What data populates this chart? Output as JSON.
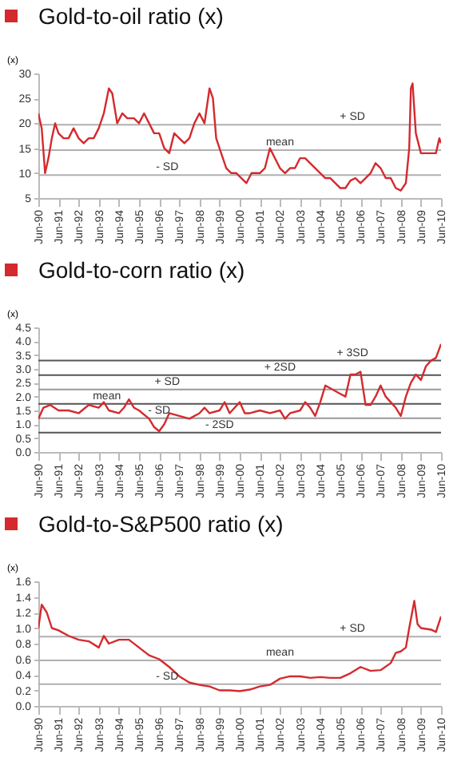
{
  "chart_data": [
    {
      "type": "line",
      "title": "Gold-to-oil ratio (x)",
      "ylabel": "(x)",
      "x": [
        "1990-06",
        "1990-08",
        "1990-10",
        "1990-12",
        "1991-02",
        "1991-04",
        "1991-06",
        "1991-09",
        "1991-12",
        "1992-03",
        "1992-06",
        "1992-09",
        "1992-12",
        "1993-03",
        "1993-06",
        "1993-09",
        "1993-12",
        "1994-02",
        "1994-05",
        "1994-08",
        "1994-11",
        "1995-03",
        "1995-06",
        "1995-09",
        "1995-12",
        "1996-03",
        "1996-06",
        "1996-09",
        "1996-12",
        "1997-03",
        "1997-06",
        "1997-09",
        "1997-12",
        "1998-03",
        "1998-06",
        "1998-09",
        "1998-12",
        "1999-02",
        "1999-04",
        "1999-07",
        "1999-10",
        "2000-01",
        "2000-04",
        "2000-07",
        "2000-10",
        "2001-01",
        "2001-06",
        "2001-09",
        "2001-12",
        "2002-03",
        "2002-06",
        "2002-09",
        "2002-12",
        "2003-03",
        "2003-06",
        "2003-09",
        "2003-12",
        "2004-03",
        "2004-06",
        "2004-09",
        "2004-12",
        "2005-03",
        "2005-06",
        "2005-09",
        "2005-12",
        "2006-03",
        "2006-06",
        "2006-09",
        "2006-12",
        "2007-03",
        "2007-06",
        "2007-09",
        "2007-12",
        "2008-03",
        "2008-06",
        "2008-09",
        "2008-11",
        "2008-12",
        "2009-01",
        "2009-03",
        "2009-06",
        "2009-09",
        "2009-12",
        "2010-03",
        "2010-05",
        "2010-06"
      ],
      "series": [
        {
          "color": "#d42a2e",
          "values": [
            22,
            19,
            10,
            13,
            17,
            20,
            18,
            17,
            17,
            19,
            17,
            16,
            17,
            17,
            19,
            22,
            27,
            26,
            20,
            22,
            21,
            21,
            20,
            22,
            20,
            18,
            18,
            15,
            14,
            18,
            17,
            16,
            17,
            20,
            22,
            20,
            27,
            25,
            17,
            14,
            11,
            10,
            10,
            9,
            8,
            10,
            10,
            11,
            15,
            13,
            11,
            10,
            11,
            11,
            13,
            13,
            12,
            11,
            10,
            9,
            9,
            8,
            7,
            7,
            8.5,
            9,
            8,
            9,
            10,
            12,
            11,
            9,
            9,
            7,
            6.5,
            8,
            15,
            27,
            28,
            18,
            14,
            14,
            14,
            14,
            17,
            16
          ]
        }
      ],
      "xlim": [
        "1990-06",
        "2010-06"
      ],
      "xticks": [
        {
          "value": "1990-06",
          "label": "Jun-90"
        },
        {
          "value": "1991-06",
          "label": "Jun-91"
        },
        {
          "value": "1992-06",
          "label": "Jun-92"
        },
        {
          "value": "1993-06",
          "label": "Jun-93"
        },
        {
          "value": "1994-06",
          "label": "Jun-94"
        },
        {
          "value": "1995-06",
          "label": "Jun-95"
        },
        {
          "value": "1996-06",
          "label": "Jun-96"
        },
        {
          "value": "1997-06",
          "label": "Jun-97"
        },
        {
          "value": "1998-06",
          "label": "Jun-98"
        },
        {
          "value": "1999-06",
          "label": "Jun-99"
        },
        {
          "value": "2000-06",
          "label": "Jun-00"
        },
        {
          "value": "2001-06",
          "label": "Jun-01"
        },
        {
          "value": "2002-06",
          "label": "Jun-02"
        },
        {
          "value": "2003-06",
          "label": "Jun-03"
        },
        {
          "value": "2004-06",
          "label": "Jun-04"
        },
        {
          "value": "2005-06",
          "label": "Jun-05"
        },
        {
          "value": "2006-06",
          "label": "Jun-06"
        },
        {
          "value": "2007-06",
          "label": "Jun-07"
        },
        {
          "value": "2008-06",
          "label": "Jun-08"
        },
        {
          "value": "2009-06",
          "label": "Jun-09"
        },
        {
          "value": "2010-06",
          "label": "Jun-10"
        }
      ],
      "ylim": [
        5,
        30
      ],
      "yticks": [
        5,
        10,
        15,
        20,
        25,
        30
      ],
      "ref_lines": [
        {
          "axis": "y",
          "value": 19.7,
          "label": "+ SD",
          "color": "#b0b0b0"
        },
        {
          "axis": "y",
          "value": 14.6,
          "label": "mean",
          "color": "#b0b0b0"
        },
        {
          "axis": "y",
          "value": 9.6,
          "label": "- SD",
          "color": "#b0b0b0"
        }
      ]
    },
    {
      "type": "line",
      "title": "Gold-to-corn ratio (x)",
      "ylabel": "(x)",
      "x": [
        "1990-06",
        "1990-09",
        "1991-01",
        "1991-06",
        "1991-12",
        "1992-06",
        "1992-12",
        "1993-06",
        "1993-09",
        "1993-12",
        "1994-06",
        "1994-09",
        "1994-12",
        "1995-03",
        "1995-06",
        "1995-12",
        "1996-03",
        "1996-06",
        "1996-09",
        "1996-12",
        "1997-06",
        "1997-12",
        "1998-06",
        "1998-09",
        "1998-12",
        "1999-06",
        "1999-09",
        "1999-12",
        "2000-03",
        "2000-06",
        "2000-09",
        "2000-12",
        "2001-06",
        "2001-12",
        "2002-06",
        "2002-09",
        "2002-12",
        "2003-06",
        "2003-09",
        "2003-12",
        "2004-03",
        "2004-06",
        "2004-09",
        "2004-12",
        "2005-06",
        "2005-09",
        "2005-12",
        "2006-03",
        "2006-06",
        "2006-09",
        "2006-12",
        "2007-03",
        "2007-06",
        "2007-09",
        "2007-12",
        "2008-03",
        "2008-06",
        "2008-09",
        "2008-12",
        "2009-03",
        "2009-06",
        "2009-09",
        "2009-12",
        "2010-03",
        "2010-06"
      ],
      "series": [
        {
          "color": "#d42a2e",
          "values": [
            1.2,
            1.6,
            1.7,
            1.5,
            1.5,
            1.4,
            1.7,
            1.6,
            1.8,
            1.5,
            1.4,
            1.6,
            1.9,
            1.6,
            1.5,
            1.2,
            0.9,
            0.75,
            1.0,
            1.4,
            1.3,
            1.2,
            1.4,
            1.6,
            1.4,
            1.5,
            1.8,
            1.4,
            1.6,
            1.8,
            1.4,
            1.4,
            1.5,
            1.4,
            1.5,
            1.2,
            1.4,
            1.5,
            1.8,
            1.6,
            1.3,
            1.8,
            2.4,
            2.3,
            2.1,
            2.0,
            2.8,
            2.8,
            2.9,
            1.7,
            1.7,
            2.0,
            2.4,
            2.0,
            1.8,
            1.6,
            1.3,
            2.0,
            2.5,
            2.8,
            2.6,
            3.1,
            3.3,
            3.4,
            3.9
          ]
        }
      ],
      "xlim": [
        "1990-06",
        "2010-06"
      ],
      "xticks": [
        {
          "value": "1990-06",
          "label": "Jun-90"
        },
        {
          "value": "1991-06",
          "label": "Jun-91"
        },
        {
          "value": "1992-06",
          "label": "Jun-92"
        },
        {
          "value": "1993-06",
          "label": "Jun-93"
        },
        {
          "value": "1994-06",
          "label": "Jun-94"
        },
        {
          "value": "1995-06",
          "label": "Jun-95"
        },
        {
          "value": "1996-06",
          "label": "Jun-96"
        },
        {
          "value": "1997-06",
          "label": "Jun-97"
        },
        {
          "value": "1998-06",
          "label": "Jun-98"
        },
        {
          "value": "1999-06",
          "label": "Jun-99"
        },
        {
          "value": "2000-06",
          "label": "Jun-00"
        },
        {
          "value": "2001-06",
          "label": "Jun-01"
        },
        {
          "value": "2002-06",
          "label": "Jun-02"
        },
        {
          "value": "2003-06",
          "label": "Jun-03"
        },
        {
          "value": "2004-06",
          "label": "Jun-04"
        },
        {
          "value": "2005-06",
          "label": "Jun-05"
        },
        {
          "value": "2006-06",
          "label": "Jun-06"
        },
        {
          "value": "2007-06",
          "label": "Jun-07"
        },
        {
          "value": "2008-06",
          "label": "Jun-08"
        },
        {
          "value": "2009-06",
          "label": "Jun-09"
        },
        {
          "value": "2010-06",
          "label": "Jun-10"
        }
      ],
      "ylim": [
        0,
        4.5
      ],
      "yticks": [
        {
          "value": 0,
          "label": "0.0"
        },
        {
          "value": 0.5,
          "label": "0.5"
        },
        {
          "value": 1,
          "label": "1.0"
        },
        {
          "value": 1.5,
          "label": "1.5"
        },
        {
          "value": 2,
          "label": "2.0"
        },
        {
          "value": 2.5,
          "label": "2.5"
        },
        {
          "value": 3,
          "label": "3.0"
        },
        {
          "value": 3.5,
          "label": "3.5"
        },
        {
          "value": 4,
          "label": "4.0"
        },
        {
          "value": 4.5,
          "label": "4.5"
        }
      ],
      "ref_lines": [
        {
          "axis": "y",
          "value": 3.3,
          "label": "+ 3SD",
          "color": "#555555"
        },
        {
          "axis": "y",
          "value": 2.78,
          "label": "+ 2SD",
          "color": "#555555"
        },
        {
          "axis": "y",
          "value": 2.26,
          "label": "+ SD",
          "color": "#999999"
        },
        {
          "axis": "y",
          "value": 1.74,
          "label": "mean",
          "color": "#555555"
        },
        {
          "axis": "y",
          "value": 1.22,
          "label": "- SD",
          "color": "#999999"
        },
        {
          "axis": "y",
          "value": 0.7,
          "label": "- 2SD",
          "color": "#555555"
        }
      ]
    },
    {
      "type": "line",
      "title": "Gold-to-S&P500 ratio (x)",
      "ylabel": "(x)",
      "x": [
        "1990-06",
        "1990-08",
        "1990-11",
        "1991-02",
        "1991-06",
        "1991-12",
        "1992-06",
        "1992-12",
        "1993-06",
        "1993-09",
        "1993-12",
        "1994-06",
        "1994-12",
        "1995-06",
        "1995-12",
        "1996-06",
        "1996-12",
        "1997-06",
        "1997-12",
        "1998-06",
        "1998-12",
        "1999-06",
        "1999-12",
        "2000-06",
        "2000-12",
        "2001-06",
        "2001-12",
        "2002-06",
        "2002-12",
        "2003-06",
        "2003-12",
        "2004-06",
        "2004-12",
        "2005-06",
        "2005-12",
        "2006-06",
        "2006-12",
        "2007-06",
        "2007-12",
        "2008-03",
        "2008-06",
        "2008-09",
        "2008-11",
        "2009-02",
        "2009-04",
        "2009-06",
        "2009-12",
        "2010-03",
        "2010-06"
      ],
      "series": [
        {
          "color": "#d42a2e",
          "values": [
            1.0,
            1.3,
            1.2,
            1.0,
            0.97,
            0.9,
            0.85,
            0.83,
            0.75,
            0.9,
            0.8,
            0.85,
            0.85,
            0.75,
            0.65,
            0.6,
            0.5,
            0.38,
            0.3,
            0.27,
            0.25,
            0.2,
            0.2,
            0.19,
            0.21,
            0.25,
            0.27,
            0.35,
            0.38,
            0.38,
            0.36,
            0.37,
            0.36,
            0.36,
            0.42,
            0.5,
            0.45,
            0.46,
            0.55,
            0.68,
            0.7,
            0.75,
            1.0,
            1.35,
            1.05,
            1.0,
            0.98,
            0.95,
            1.15
          ]
        }
      ],
      "xlim": [
        "1990-06",
        "2010-06"
      ],
      "xticks": [
        {
          "value": "1990-06",
          "label": "Jun-90"
        },
        {
          "value": "1991-06",
          "label": "Jun-91"
        },
        {
          "value": "1992-06",
          "label": "Jun-92"
        },
        {
          "value": "1993-06",
          "label": "Jun-93"
        },
        {
          "value": "1994-06",
          "label": "Jun-94"
        },
        {
          "value": "1995-06",
          "label": "Jun-95"
        },
        {
          "value": "1996-06",
          "label": "Jun-96"
        },
        {
          "value": "1997-06",
          "label": "Jun-97"
        },
        {
          "value": "1998-06",
          "label": "Jun-98"
        },
        {
          "value": "1999-06",
          "label": "Jun-99"
        },
        {
          "value": "2000-06",
          "label": "Jun-00"
        },
        {
          "value": "2001-06",
          "label": "Jun-01"
        },
        {
          "value": "2002-06",
          "label": "Jun-02"
        },
        {
          "value": "2003-06",
          "label": "Jun-03"
        },
        {
          "value": "2004-06",
          "label": "Jun-04"
        },
        {
          "value": "2005-06",
          "label": "Jun-05"
        },
        {
          "value": "2006-06",
          "label": "Jun-06"
        },
        {
          "value": "2007-06",
          "label": "Jun-07"
        },
        {
          "value": "2008-06",
          "label": "Jun-08"
        },
        {
          "value": "2009-06",
          "label": "Jun-09"
        },
        {
          "value": "2010-06",
          "label": "Jun-10"
        }
      ],
      "ylim": [
        0,
        1.6
      ],
      "yticks": [
        {
          "value": 0,
          "label": "0.0"
        },
        {
          "value": 0.2,
          "label": "0.2"
        },
        {
          "value": 0.4,
          "label": "0.4"
        },
        {
          "value": 0.6,
          "label": "0.6"
        },
        {
          "value": 0.8,
          "label": "0.8"
        },
        {
          "value": 1,
          "label": "1.0"
        },
        {
          "value": 1.2,
          "label": "1.2"
        },
        {
          "value": 1.4,
          "label": "1.4"
        },
        {
          "value": 1.6,
          "label": "1.6"
        }
      ],
      "ref_lines": [
        {
          "axis": "y",
          "value": 0.89,
          "label": "+ SD",
          "color": "#b0b0b0"
        },
        {
          "axis": "y",
          "value": 0.585,
          "label": "mean",
          "color": "#b0b0b0"
        },
        {
          "axis": "y",
          "value": 0.28,
          "label": "- SD",
          "color": "#b0b0b0"
        }
      ]
    }
  ]
}
